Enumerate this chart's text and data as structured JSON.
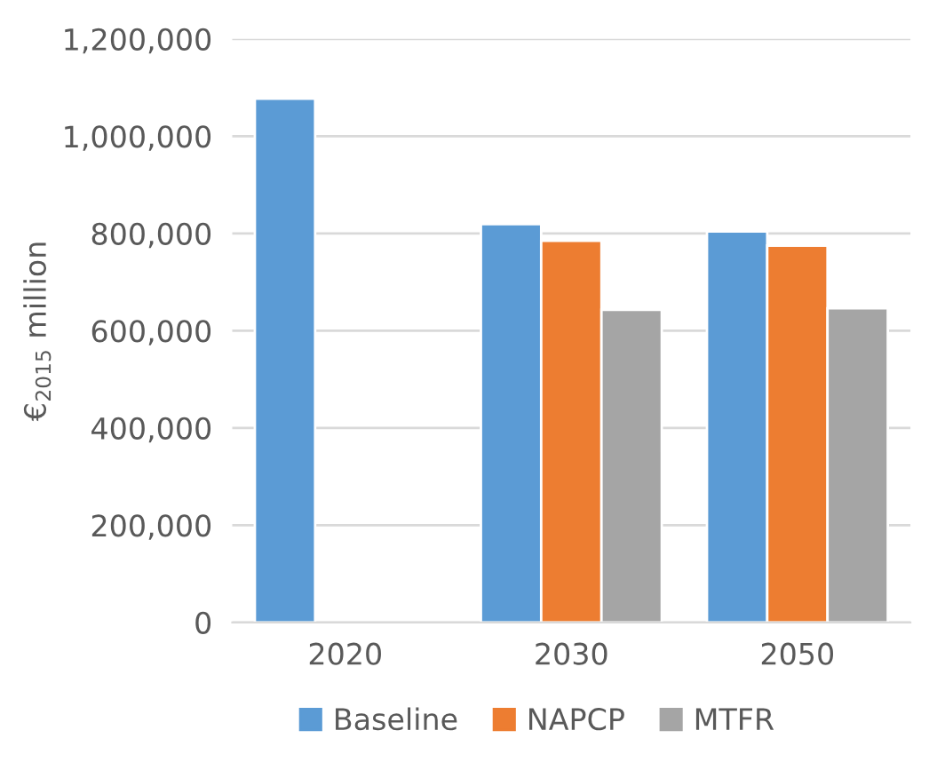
{
  "chart_data": {
    "type": "bar",
    "ylabel": "€$_{2015}$ million",
    "categories": [
      "2020",
      "2030",
      "2050"
    ],
    "series": [
      {
        "name": "Baseline",
        "color": "#5b9bd5",
        "values": [
          1077000,
          819000,
          804000
        ]
      },
      {
        "name": "NAPCP",
        "color": "#ed7d31",
        "values": [
          null,
          785000,
          775000
        ]
      },
      {
        "name": "MTFR",
        "color": "#a5a5a5",
        "values": [
          null,
          643000,
          646000
        ]
      }
    ],
    "ylim": [
      0,
      1200000
    ],
    "yticks": [
      {
        "value": 0,
        "label": "0"
      },
      {
        "value": 200000,
        "label": "200,000"
      },
      {
        "value": 400000,
        "label": "400,000"
      },
      {
        "value": 600000,
        "label": "600,000"
      },
      {
        "value": 800000,
        "label": "800,000"
      },
      {
        "value": 1000000,
        "label": "1,000,000"
      },
      {
        "value": 1200000,
        "label": "1,200,000"
      }
    ],
    "grid": "y",
    "legend": "bottom"
  }
}
